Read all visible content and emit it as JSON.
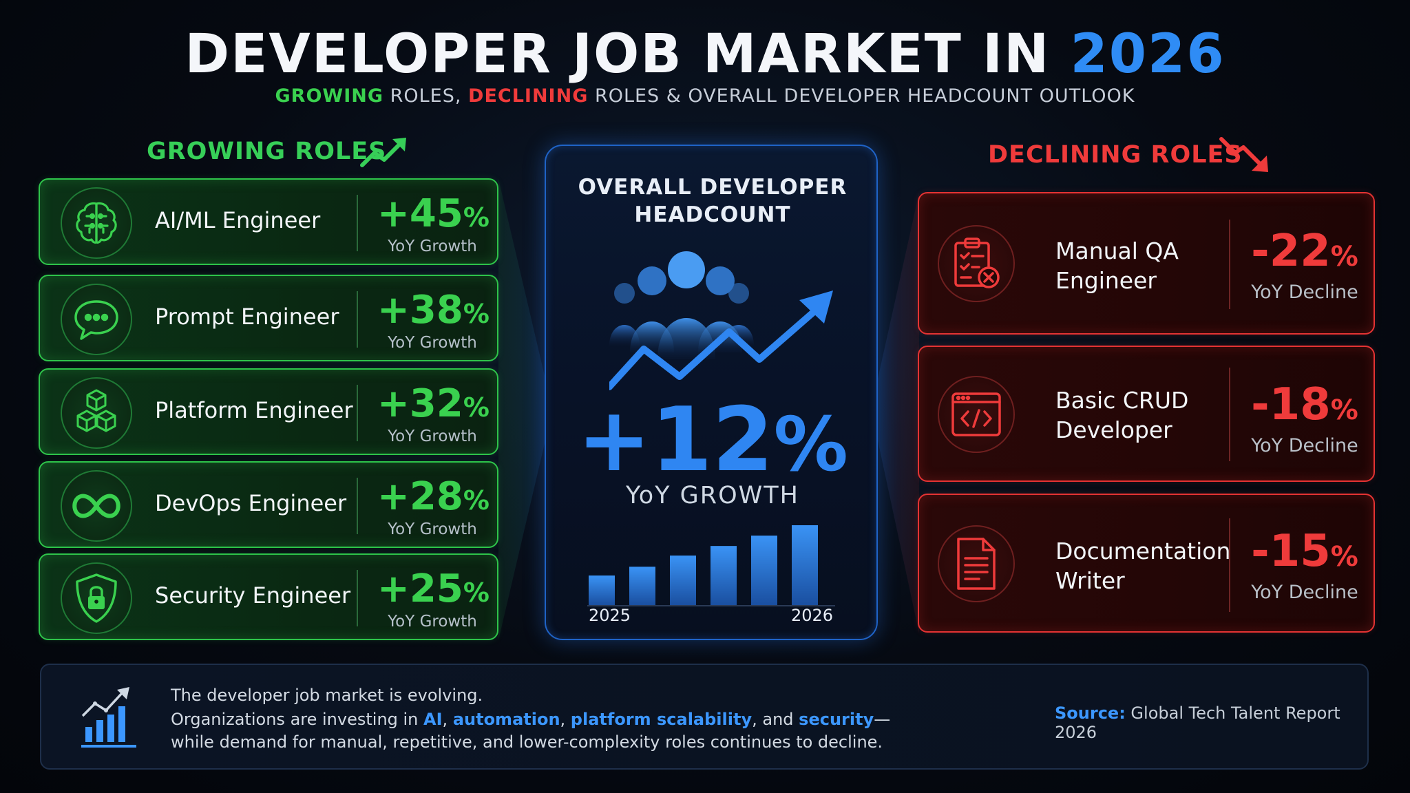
{
  "header": {
    "title_main": "DEVELOPER JOB MARKET IN ",
    "title_year": "2026",
    "subtitle_growing": "GROWING",
    "subtitle_part1": " ROLES, ",
    "subtitle_declining": "DECLINING",
    "subtitle_part2": " ROLES & OVERALL DEVELOPER HEADCOUNT OUTLOOK"
  },
  "growing": {
    "heading": "GROWING ROLES",
    "heading_icon": "trend-up-icon",
    "accent_color": "#3ad14f",
    "items": [
      {
        "role": "AI/ML Engineer",
        "value": "+45",
        "unit": "%",
        "label": "YoY Growth",
        "icon": "brain-icon"
      },
      {
        "role": "Prompt Engineer",
        "value": "+38",
        "unit": "%",
        "label": "YoY Growth",
        "icon": "chat-bubble-icon"
      },
      {
        "role": "Platform Engineer",
        "value": "+32",
        "unit": "%",
        "label": "YoY Growth",
        "icon": "cubes-icon"
      },
      {
        "role": "DevOps Engineer",
        "value": "+28",
        "unit": "%",
        "label": "YoY Growth",
        "icon": "infinity-icon"
      },
      {
        "role": "Security Engineer",
        "value": "+25",
        "unit": "%",
        "label": "YoY Growth",
        "icon": "shield-lock-icon"
      }
    ]
  },
  "declining": {
    "heading": "DECLINING ROLES",
    "heading_icon": "trend-down-icon",
    "accent_color": "#ef3b3b",
    "items": [
      {
        "role_line1": "Manual QA",
        "role_line2": "Engineer",
        "value": "-22",
        "unit": "%",
        "label": "YoY Decline",
        "icon": "clipboard-x-icon"
      },
      {
        "role_line1": "Basic CRUD",
        "role_line2": "Developer",
        "value": "-18",
        "unit": "%",
        "label": "YoY Decline",
        "icon": "code-window-icon"
      },
      {
        "role_line1": "Documentation",
        "role_line2": "Writer",
        "value": "-15",
        "unit": "%",
        "label": "YoY Decline",
        "icon": "document-icon"
      }
    ]
  },
  "overall": {
    "title_line1": "OVERALL DEVELOPER",
    "title_line2": "HEADCOUNT",
    "value": "+12",
    "unit": "%",
    "label": "YoY GROWTH",
    "accent_color": "#2f86f2",
    "icon": "people-growth-icon",
    "year_start": "2025",
    "year_end": "2026",
    "bar_relative_heights": [
      0.37,
      0.48,
      0.62,
      0.74,
      0.87,
      1.0
    ]
  },
  "bottom": {
    "icon": "bar-chart-trend-icon",
    "line1": "The developer job market is evolving.",
    "line2_a": "Organizations are investing in ",
    "hl1": "AI",
    "sep1": ", ",
    "hl2": "automation",
    "sep2": ", ",
    "hl3": "platform scalability",
    "sep3": ", and ",
    "hl4": "security",
    "line2_end": "—",
    "line3": "while demand for manual, repetitive, and lower-complexity roles continues to decline.",
    "source_label": "Source:",
    "source_text": " Global Tech Talent Report 2026"
  }
}
